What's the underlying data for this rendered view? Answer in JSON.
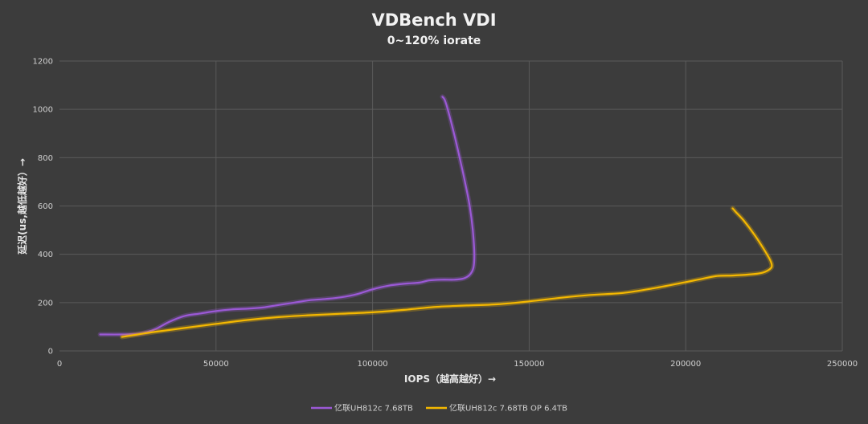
{
  "chart_data": {
    "type": "line",
    "title": "VDBench VDI",
    "subtitle": "0~120% iorate",
    "xlabel": "IOPS（越高越好）→",
    "ylabel": "延迟(us,越低越好）→",
    "xlim": [
      0,
      250000
    ],
    "ylim": [
      0,
      1200
    ],
    "x_ticks": [
      "0",
      "50000",
      "100000",
      "150000",
      "200000",
      "250000"
    ],
    "y_ticks": [
      "0",
      "200",
      "400",
      "600",
      "800",
      "1000",
      "1200"
    ],
    "grid": true,
    "legend_position": "bottom",
    "series": [
      {
        "name": "亿联UH812c 7.68TB",
        "color": "#9b59d6",
        "points": [
          [
            13000,
            68
          ],
          [
            20000,
            68
          ],
          [
            25000,
            70
          ],
          [
            28000,
            78
          ],
          [
            31000,
            92
          ],
          [
            35000,
            120
          ],
          [
            40000,
            145
          ],
          [
            45000,
            155
          ],
          [
            50000,
            165
          ],
          [
            55000,
            172
          ],
          [
            60000,
            175
          ],
          [
            65000,
            180
          ],
          [
            70000,
            190
          ],
          [
            75000,
            200
          ],
          [
            80000,
            210
          ],
          [
            85000,
            215
          ],
          [
            90000,
            222
          ],
          [
            95000,
            235
          ],
          [
            100000,
            255
          ],
          [
            105000,
            270
          ],
          [
            110000,
            278
          ],
          [
            115000,
            283
          ],
          [
            118000,
            292
          ],
          [
            122000,
            295
          ],
          [
            126000,
            295
          ],
          [
            129000,
            300
          ],
          [
            131000,
            315
          ],
          [
            132200,
            345
          ],
          [
            132500,
            400
          ],
          [
            132000,
            500
          ],
          [
            131000,
            600
          ],
          [
            129500,
            700
          ],
          [
            127800,
            800
          ],
          [
            126000,
            900
          ],
          [
            124000,
            1000
          ],
          [
            123000,
            1040
          ],
          [
            122300,
            1052
          ]
        ]
      },
      {
        "name": "亿联UH812c 7.68TB OP 6.4TB",
        "color": "#f5b800",
        "points": [
          [
            20000,
            58
          ],
          [
            25000,
            68
          ],
          [
            30000,
            78
          ],
          [
            40000,
            95
          ],
          [
            50000,
            112
          ],
          [
            60000,
            128
          ],
          [
            70000,
            140
          ],
          [
            80000,
            148
          ],
          [
            90000,
            154
          ],
          [
            100000,
            160
          ],
          [
            110000,
            170
          ],
          [
            120000,
            182
          ],
          [
            130000,
            188
          ],
          [
            140000,
            193
          ],
          [
            150000,
            205
          ],
          [
            160000,
            220
          ],
          [
            170000,
            232
          ],
          [
            180000,
            240
          ],
          [
            190000,
            260
          ],
          [
            200000,
            285
          ],
          [
            205000,
            298
          ],
          [
            210000,
            310
          ],
          [
            215000,
            312
          ],
          [
            220000,
            316
          ],
          [
            224000,
            322
          ],
          [
            226500,
            335
          ],
          [
            227500,
            350
          ],
          [
            227000,
            375
          ],
          [
            225000,
            420
          ],
          [
            222000,
            480
          ],
          [
            218500,
            540
          ],
          [
            216000,
            575
          ],
          [
            215000,
            590
          ]
        ]
      }
    ]
  }
}
